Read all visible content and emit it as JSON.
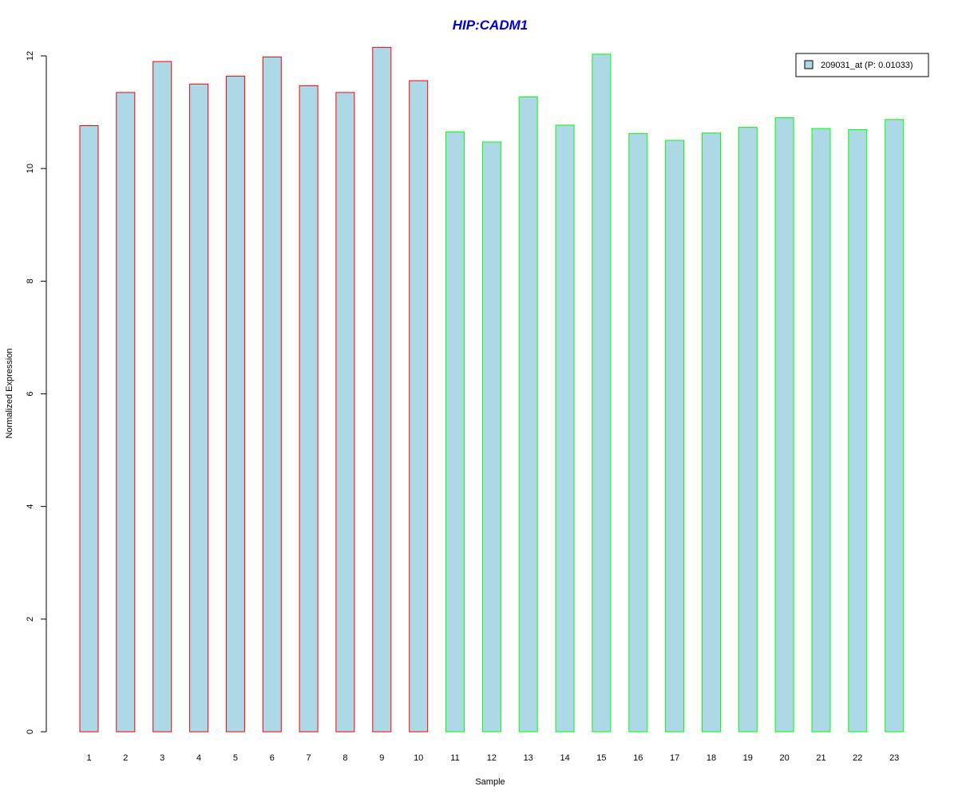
{
  "chart_data": {
    "type": "bar",
    "title": "HIP:CADM1",
    "xlabel": "Sample",
    "ylabel": "Normalized Expression",
    "categories": [
      "1",
      "2",
      "3",
      "4",
      "5",
      "6",
      "7",
      "8",
      "9",
      "10",
      "11",
      "12",
      "13",
      "14",
      "15",
      "16",
      "17",
      "18",
      "19",
      "20",
      "21",
      "22",
      "23"
    ],
    "values": [
      10.76,
      11.35,
      11.9,
      11.5,
      11.64,
      11.98,
      11.47,
      11.35,
      12.15,
      11.56,
      10.65,
      10.47,
      11.27,
      10.77,
      12.03,
      10.62,
      10.5,
      10.63,
      10.73,
      10.9,
      10.71,
      10.69,
      10.87
    ],
    "ylim": [
      0,
      12
    ],
    "y_ticks": [
      "0",
      "2",
      "4",
      "6",
      "8",
      "10",
      "12"
    ],
    "series": [
      {
        "name": "209031_at (P: 0.01033)",
        "fill_color": "#add8e6"
      }
    ],
    "bar_border_colors": [
      "#ff0000",
      "#ff0000",
      "#ff0000",
      "#ff0000",
      "#ff0000",
      "#ff0000",
      "#ff0000",
      "#ff0000",
      "#ff0000",
      "#ff0000",
      "#00ff00",
      "#00ff00",
      "#00ff00",
      "#00ff00",
      "#00ff00",
      "#00ff00",
      "#00ff00",
      "#00ff00",
      "#00ff00",
      "#00ff00",
      "#00ff00",
      "#00ff00",
      "#00ff00"
    ],
    "title_color": "#0000cc",
    "legend_position": "top-right",
    "grid": false
  }
}
